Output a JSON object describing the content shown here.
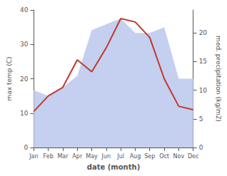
{
  "chart_data": {
    "type": "line",
    "xlabel": "date (month)",
    "ylabel": "max temp (C)",
    "y2label": "med. precipitation (kg/m2)",
    "categories": [
      "Jan",
      "Feb",
      "Mar",
      "Apr",
      "May",
      "Jun",
      "Jul",
      "Aug",
      "Sep",
      "Oct",
      "Nov",
      "Dec"
    ],
    "series": [
      {
        "type": "area",
        "axis": "y2",
        "color": "#c5cff0",
        "values": [
          10.0,
          9.0,
          10.5,
          12.5,
          20.5,
          21.5,
          22.5,
          20.0,
          20.0,
          21.0,
          12.0,
          12.0
        ]
      },
      {
        "type": "line",
        "color": "#c0392b",
        "values": [
          10.5,
          15.0,
          17.5,
          25.5,
          22.0,
          29.0,
          37.5,
          36.5,
          32.0,
          20.0,
          12.0,
          11.0
        ]
      }
    ],
    "ylim": [
      0,
      40
    ],
    "yticks": [
      0,
      10,
      20,
      30,
      40
    ],
    "y2lim": [
      0,
      24
    ],
    "y2ticks": [
      0,
      5,
      10,
      15,
      20
    ],
    "grid": false
  }
}
